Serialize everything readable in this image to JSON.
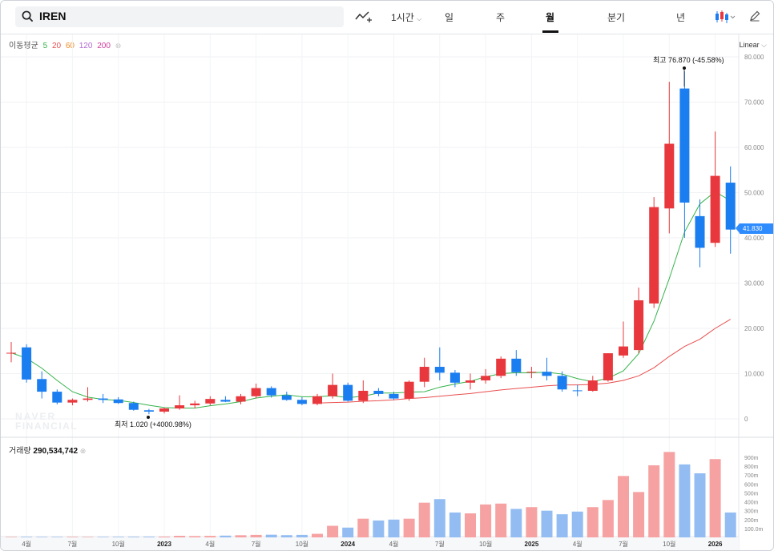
{
  "search": {
    "value": "IREN"
  },
  "toolbar": {
    "interval_label": "1시간",
    "tabs": [
      "일",
      "주",
      "월",
      "분기",
      "년"
    ],
    "active_tab": "월"
  },
  "legend": {
    "label": "이동평균",
    "periods": [
      "5",
      "20",
      "60",
      "120",
      "200"
    ],
    "colors": [
      "#35b34a",
      "#e94e4e",
      "#f28c28",
      "#b26ad6",
      "#d23c9c"
    ]
  },
  "axis_mode": "Linear",
  "current_price": "41.830",
  "volume_label": "거래량",
  "volume_value": "290,534,742",
  "colors": {
    "up": "#e8383d",
    "down": "#1a7df0",
    "vol_up": "#f6a2a2",
    "vol_down": "#93bdf2",
    "ma5": "#35b34a",
    "ma20": "#e94e4e"
  },
  "chart_data": {
    "type": "candlestick",
    "price_ticks": [
      "80.000",
      "70.000",
      "60.000",
      "50.000",
      "40.000",
      "30.000",
      "20.000",
      "10.000",
      "0"
    ],
    "volume_ticks": [
      "900m",
      "800m",
      "700m",
      "600m",
      "500m",
      "400m",
      "300m",
      "200m",
      "100.0m"
    ],
    "x_ticks": [
      "4월",
      "7월",
      "10월",
      "2023",
      "4월",
      "7월",
      "10월",
      "2024",
      "4월",
      "7월",
      "10월",
      "2025",
      "4월",
      "7월",
      "10월",
      "2026"
    ],
    "high_annotation": "최고  76.870 (-45.58%)",
    "low_annotation": "최저  1.020 (+4000.98%)",
    "candles": [
      {
        "o": 14.5,
        "h": 17.0,
        "l": 12.5,
        "c": 14.6,
        "v": 5
      },
      {
        "o": 15.8,
        "h": 16.5,
        "l": 8.0,
        "c": 8.7,
        "v": 6
      },
      {
        "o": 8.8,
        "h": 10.5,
        "l": 4.5,
        "c": 6.0,
        "v": 5
      },
      {
        "o": 6.0,
        "h": 6.5,
        "l": 3.2,
        "c": 3.6,
        "v": 5
      },
      {
        "o": 3.6,
        "h": 4.5,
        "l": 3.0,
        "c": 4.2,
        "v": 6
      },
      {
        "o": 4.2,
        "h": 7.0,
        "l": 3.8,
        "c": 4.5,
        "v": 5
      },
      {
        "o": 4.5,
        "h": 5.5,
        "l": 3.5,
        "c": 4.2,
        "v": 5
      },
      {
        "o": 4.3,
        "h": 4.8,
        "l": 3.3,
        "c": 3.5,
        "v": 6
      },
      {
        "o": 3.5,
        "h": 3.8,
        "l": 1.8,
        "c": 2.0,
        "v": 7
      },
      {
        "o": 1.9,
        "h": 2.2,
        "l": 1.02,
        "c": 1.6,
        "v": 8
      },
      {
        "o": 1.6,
        "h": 2.5,
        "l": 1.2,
        "c": 2.3,
        "v": 9
      },
      {
        "o": 2.3,
        "h": 5.2,
        "l": 2.0,
        "c": 3.0,
        "v": 18
      },
      {
        "o": 3.0,
        "h": 4.0,
        "l": 2.3,
        "c": 3.4,
        "v": 15
      },
      {
        "o": 3.4,
        "h": 5.0,
        "l": 3.0,
        "c": 4.4,
        "v": 17
      },
      {
        "o": 4.2,
        "h": 5.0,
        "l": 3.7,
        "c": 3.8,
        "v": 20
      },
      {
        "o": 3.8,
        "h": 5.5,
        "l": 3.2,
        "c": 5.0,
        "v": 24
      },
      {
        "o": 5.0,
        "h": 7.8,
        "l": 4.5,
        "c": 6.8,
        "v": 28
      },
      {
        "o": 6.8,
        "h": 7.2,
        "l": 4.7,
        "c": 5.2,
        "v": 30
      },
      {
        "o": 5.2,
        "h": 6.0,
        "l": 4.0,
        "c": 4.2,
        "v": 25
      },
      {
        "o": 4.2,
        "h": 4.8,
        "l": 3.0,
        "c": 3.3,
        "v": 28
      },
      {
        "o": 3.3,
        "h": 5.5,
        "l": 3.0,
        "c": 5.0,
        "v": 40
      },
      {
        "o": 5.0,
        "h": 10.0,
        "l": 4.5,
        "c": 7.5,
        "v": 130
      },
      {
        "o": 7.5,
        "h": 8.0,
        "l": 3.8,
        "c": 4.0,
        "v": 110
      },
      {
        "o": 4.0,
        "h": 8.5,
        "l": 3.5,
        "c": 6.2,
        "v": 210
      },
      {
        "o": 6.2,
        "h": 6.8,
        "l": 5.0,
        "c": 5.5,
        "v": 190
      },
      {
        "o": 5.5,
        "h": 6.0,
        "l": 4.2,
        "c": 4.5,
        "v": 200
      },
      {
        "o": 4.5,
        "h": 8.5,
        "l": 4.0,
        "c": 8.2,
        "v": 210
      },
      {
        "o": 8.2,
        "h": 13.5,
        "l": 7.0,
        "c": 11.5,
        "v": 390
      },
      {
        "o": 11.5,
        "h": 15.8,
        "l": 8.5,
        "c": 10.2,
        "v": 430
      },
      {
        "o": 10.2,
        "h": 10.8,
        "l": 7.0,
        "c": 8.0,
        "v": 280
      },
      {
        "o": 8.0,
        "h": 10.0,
        "l": 6.5,
        "c": 8.5,
        "v": 270
      },
      {
        "o": 8.5,
        "h": 11.0,
        "l": 7.8,
        "c": 9.5,
        "v": 370
      },
      {
        "o": 9.5,
        "h": 13.8,
        "l": 9.0,
        "c": 13.3,
        "v": 380
      },
      {
        "o": 13.3,
        "h": 15.2,
        "l": 9.5,
        "c": 10.3,
        "v": 320
      },
      {
        "o": 10.3,
        "h": 11.5,
        "l": 9.0,
        "c": 10.4,
        "v": 340
      },
      {
        "o": 10.4,
        "h": 13.5,
        "l": 8.5,
        "c": 9.5,
        "v": 300
      },
      {
        "o": 9.5,
        "h": 10.5,
        "l": 6.0,
        "c": 6.5,
        "v": 260
      },
      {
        "o": 6.3,
        "h": 7.5,
        "l": 5.0,
        "c": 6.2,
        "v": 290
      },
      {
        "o": 6.2,
        "h": 9.5,
        "l": 6.0,
        "c": 8.5,
        "v": 340
      },
      {
        "o": 8.5,
        "h": 14.5,
        "l": 8.2,
        "c": 14.5,
        "v": 420
      },
      {
        "o": 14.0,
        "h": 21.5,
        "l": 13.5,
        "c": 16.0,
        "v": 690
      },
      {
        "o": 15.2,
        "h": 29.0,
        "l": 14.5,
        "c": 26.2,
        "v": 510
      },
      {
        "o": 25.5,
        "h": 49.0,
        "l": 24.5,
        "c": 46.8,
        "v": 810
      },
      {
        "o": 46.5,
        "h": 74.5,
        "l": 41.0,
        "c": 60.8,
        "v": 960
      },
      {
        "o": 73.0,
        "h": 76.87,
        "l": 40.0,
        "c": 47.8,
        "v": 820
      },
      {
        "o": 44.8,
        "h": 48.5,
        "l": 33.5,
        "c": 37.8,
        "v": 720
      },
      {
        "o": 38.9,
        "h": 63.5,
        "l": 38.0,
        "c": 53.7,
        "v": 880
      },
      {
        "o": 52.2,
        "h": 55.8,
        "l": 36.5,
        "c": 41.83,
        "v": 280
      }
    ],
    "ma5": [
      14.6,
      13.4,
      11.2,
      8.5,
      6.0,
      4.8,
      4.3,
      4.1,
      3.6,
      3.0,
      2.5,
      2.4,
      2.4,
      2.9,
      3.3,
      3.8,
      4.6,
      5.0,
      5.3,
      4.9,
      4.9,
      5.1,
      4.7,
      5.0,
      5.7,
      5.7,
      5.9,
      6.0,
      7.0,
      7.7,
      8.3,
      9.3,
      10.0,
      10.2,
      10.2,
      10.3,
      9.9,
      8.9,
      8.2,
      9.0,
      10.6,
      14.4,
      21.6,
      31.0,
      41.3,
      47.5,
      50.2,
      48.2
    ],
    "ma20": [
      null,
      null,
      null,
      null,
      null,
      null,
      null,
      null,
      null,
      null,
      null,
      null,
      null,
      null,
      null,
      null,
      null,
      null,
      null,
      null,
      3.5,
      3.6,
      3.7,
      3.9,
      4.0,
      4.2,
      4.5,
      4.7,
      5.0,
      5.3,
      5.6,
      6.0,
      6.4,
      6.7,
      7.0,
      7.3,
      7.5,
      7.5,
      7.6,
      7.9,
      8.5,
      9.5,
      11.3,
      13.8,
      16.0,
      17.6,
      20.0,
      22.0
    ]
  }
}
